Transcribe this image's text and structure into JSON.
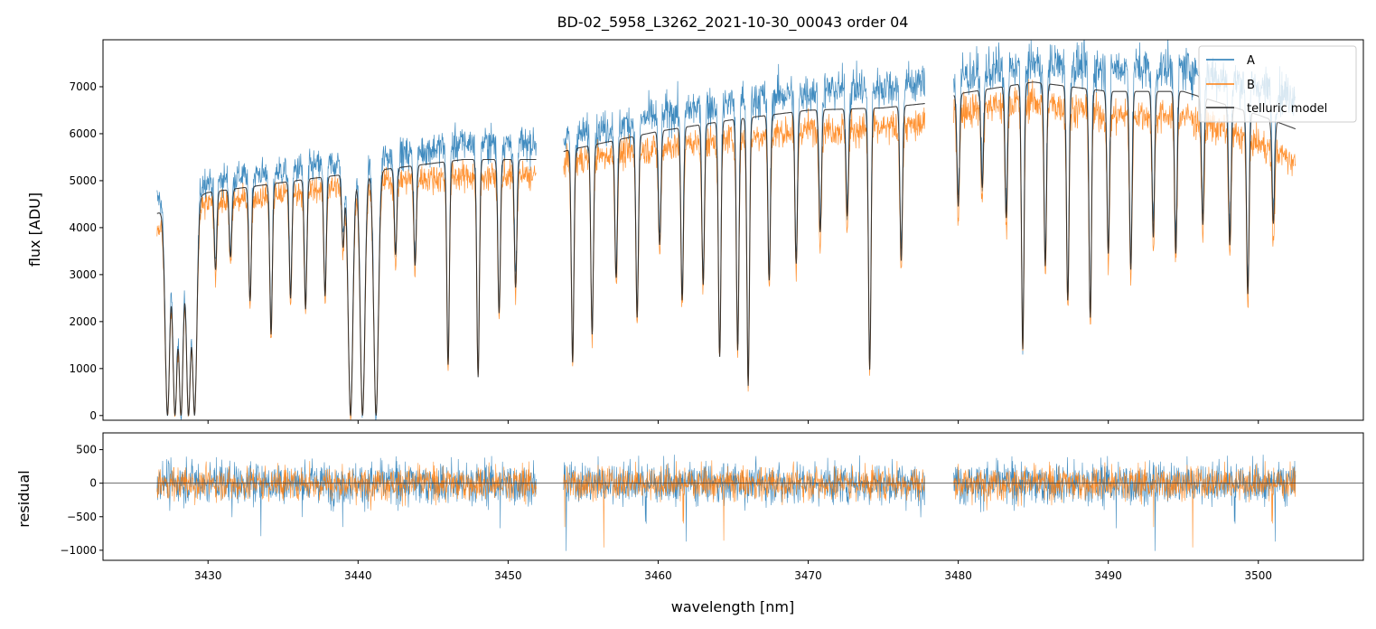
{
  "chart_data": [
    {
      "type": "line",
      "panel": "spectrum",
      "title": "BD-02_5958_L3262_2021-10-30_00043  order 04",
      "xlabel": "",
      "ylabel": "flux [ADU]",
      "xlim": [
        3423,
        3507
      ],
      "ylim": [
        -100,
        8000
      ],
      "yticks": [
        0,
        1000,
        2000,
        3000,
        4000,
        5000,
        6000,
        7000
      ],
      "xticks": [
        3430,
        3440,
        3450,
        3460,
        3470,
        3480,
        3490,
        3500
      ],
      "xtick_labels_visible": false,
      "grid": false,
      "legend_position": "top-right",
      "segments": [
        [
          3426.6,
          3451.9
        ],
        [
          3453.7,
          3477.8
        ],
        [
          3479.7,
          3502.5
        ]
      ],
      "series": [
        {
          "name": "A",
          "color": "#1f77b4",
          "continuum": [
            [
              3426.6,
              4600
            ],
            [
              3430,
              5000
            ],
            [
              3437,
              5300
            ],
            [
              3442,
              5500
            ],
            [
              3447,
              5800
            ],
            [
              3452,
              5800
            ],
            [
              3454,
              5900
            ],
            [
              3460,
              6400
            ],
            [
              3465,
              6700
            ],
            [
              3470,
              6900
            ],
            [
              3475,
              7000
            ],
            [
              3478,
              7100
            ],
            [
              3480,
              7200
            ],
            [
              3485,
              7500
            ],
            [
              3490,
              7400
            ],
            [
              3495,
              7400
            ],
            [
              3500,
              7000
            ],
            [
              3502.5,
              6800
            ]
          ]
        },
        {
          "name": "B",
          "color": "#ff7f0e",
          "continuum": [
            [
              3426.6,
              4000
            ],
            [
              3430,
              4500
            ],
            [
              3437,
              4800
            ],
            [
              3442,
              5000
            ],
            [
              3447,
              5100
            ],
            [
              3452,
              5100
            ],
            [
              3454,
              5400
            ],
            [
              3460,
              5700
            ],
            [
              3465,
              5900
            ],
            [
              3470,
              6100
            ],
            [
              3475,
              6100
            ],
            [
              3478,
              6200
            ],
            [
              3480,
              6500
            ],
            [
              3485,
              6700
            ],
            [
              3490,
              6400
            ],
            [
              3495,
              6400
            ],
            [
              3500,
              5800
            ],
            [
              3502.5,
              5400
            ]
          ]
        },
        {
          "name": "telluric model",
          "color": "#222222",
          "continuum": [
            [
              3426.6,
              4300
            ],
            [
              3430,
              4750
            ],
            [
              3437,
              5050
            ],
            [
              3442,
              5250
            ],
            [
              3447,
              5450
            ],
            [
              3452,
              5450
            ],
            [
              3454,
              5650
            ],
            [
              3460,
              6050
            ],
            [
              3465,
              6300
            ],
            [
              3470,
              6500
            ],
            [
              3475,
              6550
            ],
            [
              3478,
              6650
            ],
            [
              3480,
              6850
            ],
            [
              3485,
              7100
            ],
            [
              3490,
              6900
            ],
            [
              3495,
              6900
            ],
            [
              3500,
              6400
            ],
            [
              3502.5,
              6100
            ]
          ]
        }
      ],
      "absorption_lines": [
        {
          "x": 3427.3,
          "depth": 1.0
        },
        {
          "x": 3427.8,
          "depth": 1.0
        },
        {
          "x": 3428.2,
          "depth": 1.0
        },
        {
          "x": 3428.7,
          "depth": 1.0
        },
        {
          "x": 3429.1,
          "depth": 1.0
        },
        {
          "x": 3430.5,
          "depth": 0.35
        },
        {
          "x": 3431.5,
          "depth": 0.3
        },
        {
          "x": 3432.8,
          "depth": 0.5
        },
        {
          "x": 3434.2,
          "depth": 0.65
        },
        {
          "x": 3435.5,
          "depth": 0.5
        },
        {
          "x": 3436.5,
          "depth": 0.55
        },
        {
          "x": 3437.8,
          "depth": 0.5
        },
        {
          "x": 3439.0,
          "depth": 0.3
        },
        {
          "x": 3439.5,
          "depth": 1.0
        },
        {
          "x": 3440.3,
          "depth": 1.0
        },
        {
          "x": 3441.2,
          "depth": 1.0
        },
        {
          "x": 3442.5,
          "depth": 0.35
        },
        {
          "x": 3443.8,
          "depth": 0.4
        },
        {
          "x": 3446.0,
          "depth": 0.8
        },
        {
          "x": 3448.0,
          "depth": 0.85
        },
        {
          "x": 3449.4,
          "depth": 0.6
        },
        {
          "x": 3450.5,
          "depth": 0.5
        },
        {
          "x": 3454.3,
          "depth": 0.8
        },
        {
          "x": 3455.6,
          "depth": 0.7
        },
        {
          "x": 3457.2,
          "depth": 0.5
        },
        {
          "x": 3458.6,
          "depth": 0.65
        },
        {
          "x": 3460.1,
          "depth": 0.4
        },
        {
          "x": 3461.6,
          "depth": 0.6
        },
        {
          "x": 3463.0,
          "depth": 0.55
        },
        {
          "x": 3464.1,
          "depth": 0.8
        },
        {
          "x": 3465.3,
          "depth": 0.78
        },
        {
          "x": 3466.0,
          "depth": 0.9
        },
        {
          "x": 3467.4,
          "depth": 0.55
        },
        {
          "x": 3469.2,
          "depth": 0.5
        },
        {
          "x": 3470.8,
          "depth": 0.4
        },
        {
          "x": 3472.6,
          "depth": 0.35
        },
        {
          "x": 3474.1,
          "depth": 0.85
        },
        {
          "x": 3476.2,
          "depth": 0.5
        },
        {
          "x": 3480.0,
          "depth": 0.35
        },
        {
          "x": 3481.6,
          "depth": 0.3
        },
        {
          "x": 3483.2,
          "depth": 0.4
        },
        {
          "x": 3484.3,
          "depth": 0.8
        },
        {
          "x": 3485.8,
          "depth": 0.55
        },
        {
          "x": 3487.3,
          "depth": 0.65
        },
        {
          "x": 3488.8,
          "depth": 0.7
        },
        {
          "x": 3490.0,
          "depth": 0.5
        },
        {
          "x": 3491.5,
          "depth": 0.55
        },
        {
          "x": 3493.0,
          "depth": 0.45
        },
        {
          "x": 3494.5,
          "depth": 0.5
        },
        {
          "x": 3496.3,
          "depth": 0.4
        },
        {
          "x": 3498.1,
          "depth": 0.45
        },
        {
          "x": 3499.3,
          "depth": 0.6
        },
        {
          "x": 3501.0,
          "depth": 0.35
        }
      ]
    },
    {
      "type": "line",
      "panel": "residual",
      "xlabel": "wavelength [nm]",
      "ylabel": "residual",
      "xlim": [
        3423,
        3507
      ],
      "ylim": [
        -1150,
        750
      ],
      "yticks": [
        -1000,
        -500,
        0,
        500
      ],
      "ytick_labels": [
        "−1000",
        "−500",
        "0",
        "500"
      ],
      "xticks": [
        3430,
        3440,
        3450,
        3460,
        3470,
        3480,
        3490,
        3500
      ],
      "xtick_labels": [
        "3430",
        "3440",
        "3450",
        "3460",
        "3470",
        "3480",
        "3490",
        "3500"
      ],
      "grid": false,
      "zero_line": true,
      "segments": [
        [
          3426.6,
          3451.9
        ],
        [
          3453.7,
          3477.8
        ],
        [
          3479.7,
          3502.5
        ]
      ],
      "series": [
        {
          "name": "A",
          "color": "#1f77b4",
          "typical_amplitude": 250
        },
        {
          "name": "B",
          "color": "#ff7f0e",
          "typical_amplitude": 200
        }
      ]
    }
  ]
}
